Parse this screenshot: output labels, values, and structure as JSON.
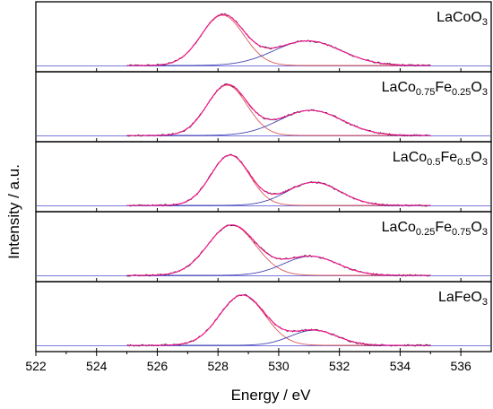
{
  "chart_data": {
    "type": "line",
    "xlabel": "Energy / eV",
    "ylabel": "Intensity / a.u.",
    "xlim": [
      522,
      537
    ],
    "x_ticks": [
      522,
      524,
      526,
      528,
      530,
      532,
      534,
      536
    ],
    "colors": {
      "measured": "#1a1a1a",
      "fit_envelope": "#ff1493",
      "lattice_oxygen_component": "#e05555",
      "surface_oxygen_component": "#4646b4",
      "background": "#7a7adc",
      "panel_frame": "#000000"
    },
    "panels": [
      {
        "name": "LaCoO3",
        "label": {
          "parts": [
            {
              "t": "LaCoO",
              "sub": false
            },
            {
              "t": "3",
              "sub": true
            }
          ]
        },
        "components": [
          {
            "center": 528.15,
            "fwhm": 1.65,
            "height": 1.0
          },
          {
            "center": 530.95,
            "fwhm": 2.6,
            "height": 0.49
          }
        ],
        "x_range": [
          525.0,
          535.0
        ]
      },
      {
        "name": "LaCo0.75Fe0.25O3",
        "label": {
          "parts": [
            {
              "t": "LaCo",
              "sub": false
            },
            {
              "t": "0.75",
              "sub": true
            },
            {
              "t": "Fe",
              "sub": false
            },
            {
              "t": "0.25",
              "sub": true
            },
            {
              "t": "O",
              "sub": false
            },
            {
              "t": "3",
              "sub": true
            }
          ]
        },
        "components": [
          {
            "center": 528.3,
            "fwhm": 1.55,
            "height": 1.0
          },
          {
            "center": 531.05,
            "fwhm": 2.45,
            "height": 0.5
          }
        ],
        "x_range": [
          525.0,
          535.0
        ]
      },
      {
        "name": "LaCo0.5Fe0.5O3",
        "label": {
          "parts": [
            {
              "t": "LaCo",
              "sub": false
            },
            {
              "t": "0.5",
              "sub": true
            },
            {
              "t": "Fe",
              "sub": false
            },
            {
              "t": "0.5",
              "sub": true
            },
            {
              "t": "O",
              "sub": false
            },
            {
              "t": "3",
              "sub": true
            }
          ]
        },
        "components": [
          {
            "center": 528.4,
            "fwhm": 1.5,
            "height": 1.0
          },
          {
            "center": 531.15,
            "fwhm": 2.05,
            "height": 0.46
          }
        ],
        "x_range": [
          525.0,
          535.0
        ]
      },
      {
        "name": "LaCo0.25Fe0.75O3",
        "label": {
          "parts": [
            {
              "t": "LaCo",
              "sub": false
            },
            {
              "t": "0.25",
              "sub": true
            },
            {
              "t": "Fe",
              "sub": false
            },
            {
              "t": "0.75",
              "sub": true
            },
            {
              "t": "O",
              "sub": false
            },
            {
              "t": "3",
              "sub": true
            }
          ]
        },
        "components": [
          {
            "center": 528.45,
            "fwhm": 1.85,
            "height": 1.0
          },
          {
            "center": 531.05,
            "fwhm": 2.1,
            "height": 0.38
          }
        ],
        "x_range": [
          525.0,
          535.0
        ]
      },
      {
        "name": "LaFeO3",
        "label": {
          "parts": [
            {
              "t": "LaFeO",
              "sub": false
            },
            {
              "t": "3",
              "sub": true
            }
          ]
        },
        "components": [
          {
            "center": 528.8,
            "fwhm": 1.75,
            "height": 1.0
          },
          {
            "center": 531.15,
            "fwhm": 1.8,
            "height": 0.3
          }
        ],
        "x_range": [
          525.0,
          535.0
        ]
      }
    ]
  }
}
